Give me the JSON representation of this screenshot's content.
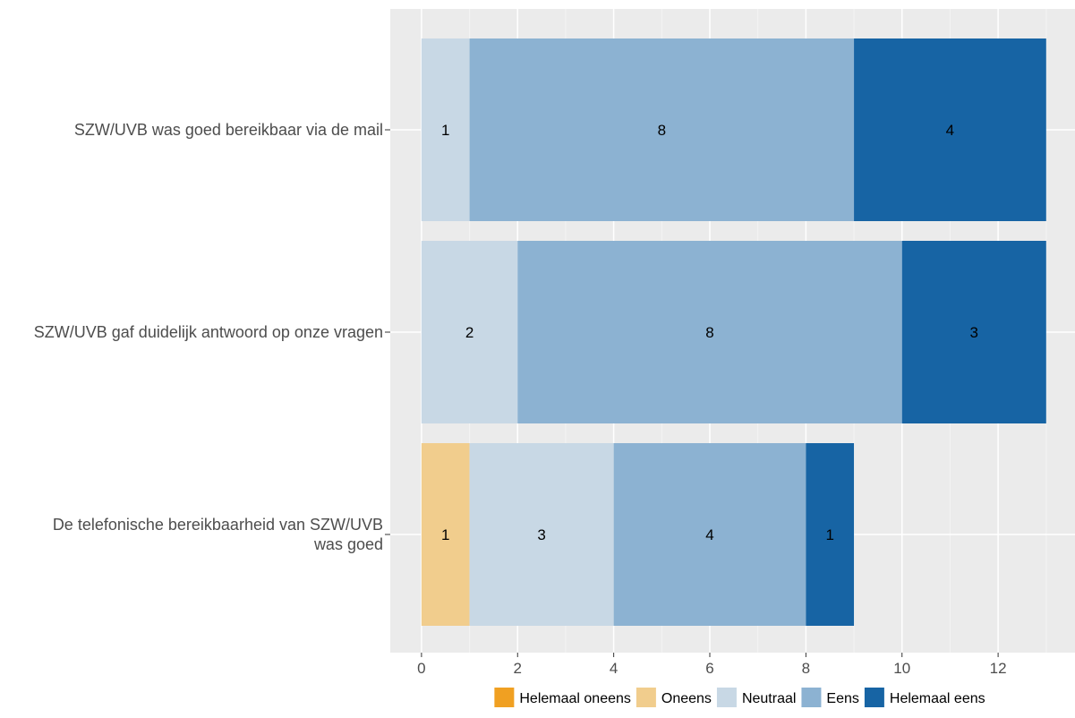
{
  "chart_data": {
    "type": "bar",
    "orientation": "horizontal",
    "stacked": true,
    "categories": [
      [
        "SZW/UVB was goed bereikbaar via de mail"
      ],
      [
        "SZW/UVB gaf duidelijk antwoord op onze vragen"
      ],
      [
        "De telefonische bereikbaarheid van SZW/UVB",
        "was goed"
      ]
    ],
    "series": [
      {
        "name": "Helemaal oneens",
        "color": "#F0A022",
        "values": [
          0,
          0,
          0
        ]
      },
      {
        "name": "Oneens",
        "color": "#F1CD8D",
        "values": [
          0,
          0,
          1
        ]
      },
      {
        "name": "Neutraal",
        "color": "#C8D8E5",
        "values": [
          1,
          2,
          3
        ]
      },
      {
        "name": "Eens",
        "color": "#8CB2D2",
        "values": [
          8,
          8,
          4
        ]
      },
      {
        "name": "Helemaal eens",
        "color": "#1764A4",
        "values": [
          4,
          3,
          1
        ]
      }
    ],
    "xticks": [
      "0",
      "2",
      "4",
      "6",
      "8",
      "10",
      "12"
    ],
    "xlim": [
      -0.65,
      13.6
    ],
    "grid": true,
    "legend_position": "bottom",
    "title": "",
    "xlabel": "",
    "ylabel": ""
  },
  "colors": {
    "panel_background": "#EBEBEB",
    "grid_major": "#FFFFFF",
    "grid_minor": "#F4F4F4"
  }
}
